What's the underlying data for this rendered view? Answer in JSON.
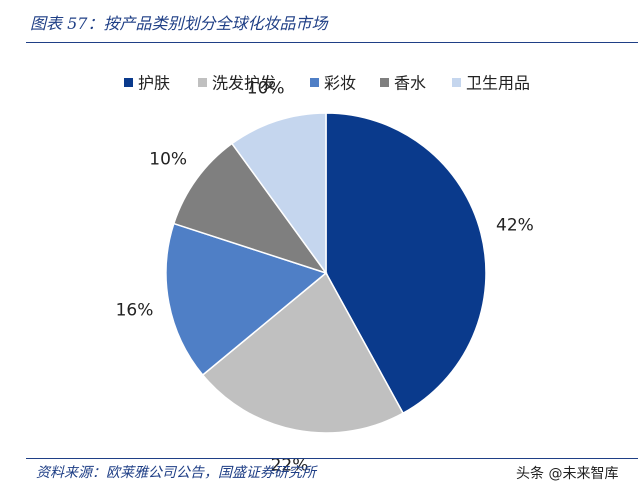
{
  "title": "图表 57：按产品类别划分全球化妆品市场",
  "source": "资料来源：欧莱雅公司公告，国盛证券研究所",
  "watermark": "头条 @未来智库",
  "chart_data": {
    "type": "pie",
    "legend_position": "top",
    "categories": [
      "护肤",
      "洗发护发",
      "彩妆",
      "香水",
      "卫生用品"
    ],
    "values": [
      42,
      22,
      16,
      10,
      10
    ],
    "labels": [
      "42%",
      "22%",
      "16%",
      "10%",
      "10%"
    ],
    "colors": [
      "#0a3a8c",
      "#c0c0c0",
      "#4f7fc6",
      "#7f7f7f",
      "#c5d6ee"
    ]
  }
}
